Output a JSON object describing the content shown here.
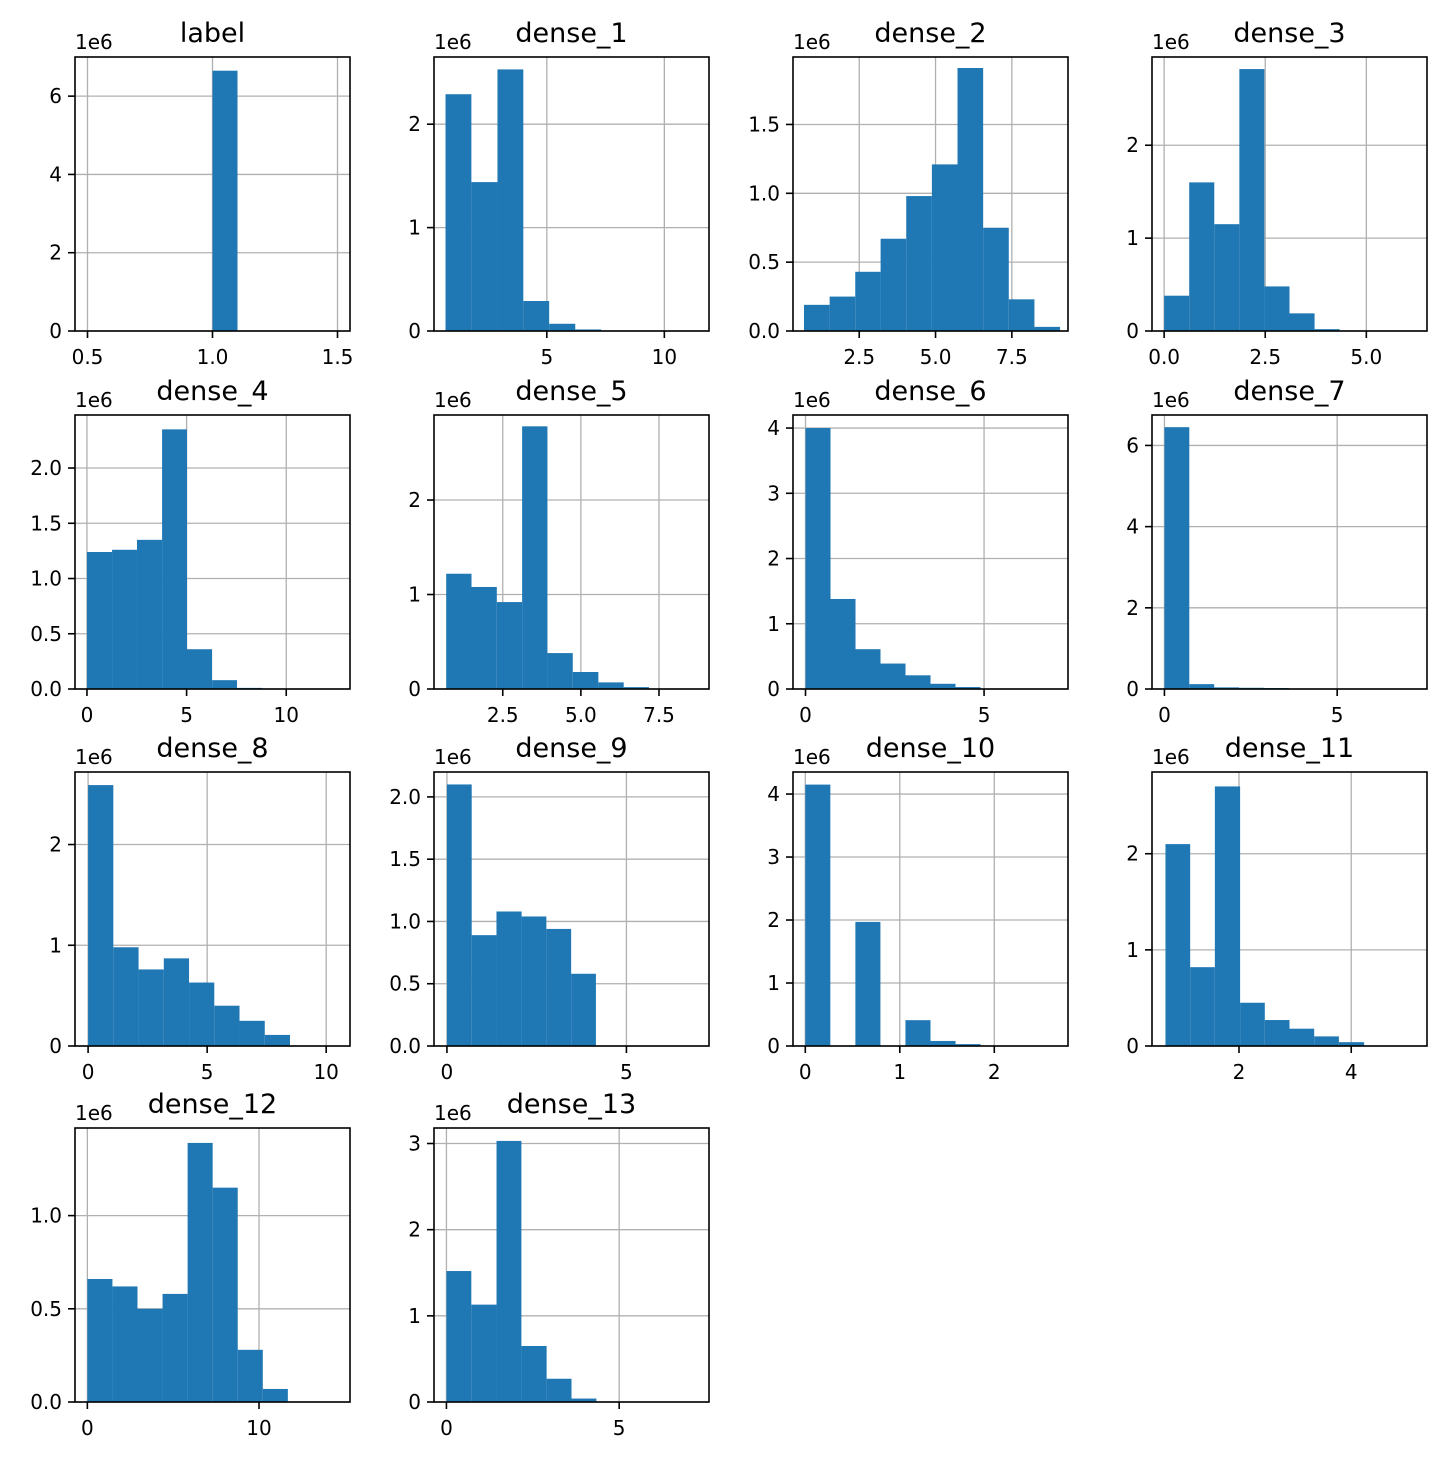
{
  "style": {
    "bar_color": "#1f77b4",
    "grid_color": "#b0b0b0",
    "axis_color": "#000000"
  },
  "chart_data": [
    {
      "type": "bar",
      "title": "label",
      "y_offset_label": "1e6",
      "grid": true,
      "xlim": [
        0.45,
        1.55
      ],
      "ylim": [
        0,
        7.0
      ],
      "xticks": [
        0.5,
        1.0,
        1.5
      ],
      "xtick_labels": [
        "0.5",
        "1.0",
        "1.5"
      ],
      "yticks": [
        0,
        2,
        4,
        6
      ],
      "ytick_labels": [
        "0",
        "2",
        "4",
        "6"
      ],
      "bin_edges": [
        1.0,
        1.1
      ],
      "values": [
        6.65
      ]
    },
    {
      "type": "bar",
      "title": "dense_1",
      "y_offset_label": "1e6",
      "grid": true,
      "xlim": [
        0.2,
        11.9
      ],
      "ylim": [
        0,
        2.65
      ],
      "xticks": [
        5,
        10
      ],
      "xtick_labels": [
        "5",
        "10"
      ],
      "yticks": [
        0,
        1,
        2
      ],
      "ytick_labels": [
        "0",
        "1",
        "2"
      ],
      "bin_edges": [
        0.69,
        1.79,
        2.9,
        4.0,
        5.1,
        6.21,
        7.31,
        8.41,
        9.52,
        10.62,
        11.73
      ],
      "values": [
        2.29,
        1.44,
        2.53,
        0.29,
        0.07,
        0.015,
        0.004,
        0.001,
        0.0005,
        0.0002
      ]
    },
    {
      "type": "bar",
      "title": "dense_2",
      "y_offset_label": "1e6",
      "grid": true,
      "xlim": [
        0.33,
        9.34
      ],
      "ylim": [
        0,
        1.99
      ],
      "xticks": [
        2.5,
        5.0,
        7.5
      ],
      "xtick_labels": [
        "2.5",
        "5.0",
        "7.5"
      ],
      "yticks": [
        0.0,
        0.5,
        1.0,
        1.5
      ],
      "ytick_labels": [
        "0.0",
        "0.5",
        "1.0",
        "1.5"
      ],
      "bin_edges": [
        0.69,
        1.53,
        2.37,
        3.2,
        4.04,
        4.88,
        5.72,
        6.56,
        7.4,
        8.24,
        9.08
      ],
      "values": [
        0.19,
        0.25,
        0.43,
        0.67,
        0.98,
        1.21,
        1.91,
        0.75,
        0.23,
        0.03
      ]
    },
    {
      "type": "bar",
      "title": "dense_3",
      "y_offset_label": "1e6",
      "grid": true,
      "xlim": [
        -0.3,
        6.5
      ],
      "ylim": [
        0,
        2.95
      ],
      "xticks": [
        0.0,
        2.5,
        5.0
      ],
      "xtick_labels": [
        "0.0",
        "2.5",
        "5.0"
      ],
      "yticks": [
        0,
        1,
        2
      ],
      "ytick_labels": [
        "0",
        "1",
        "2"
      ],
      "bin_edges": [
        0.0,
        0.62,
        1.24,
        1.86,
        2.48,
        3.1,
        3.72,
        4.34,
        4.96,
        5.58,
        6.2
      ],
      "values": [
        0.38,
        1.6,
        1.15,
        2.82,
        0.48,
        0.19,
        0.02,
        0.002,
        0.0005,
        0.0001
      ]
    },
    {
      "type": "bar",
      "title": "dense_4",
      "y_offset_label": "1e6",
      "grid": true,
      "xlim": [
        -0.6,
        13.2
      ],
      "ylim": [
        0,
        2.48
      ],
      "xticks": [
        0,
        5,
        10
      ],
      "xtick_labels": [
        "0",
        "5",
        "10"
      ],
      "yticks": [
        0.0,
        0.5,
        1.0,
        1.5,
        2.0
      ],
      "ytick_labels": [
        "0.0",
        "0.5",
        "1.0",
        "1.5",
        "2.0"
      ],
      "bin_edges": [
        0.0,
        1.26,
        2.51,
        3.77,
        5.02,
        6.28,
        7.53,
        8.79,
        10.04,
        11.3,
        12.55
      ],
      "values": [
        1.24,
        1.26,
        1.35,
        2.35,
        0.36,
        0.08,
        0.01,
        0.002,
        0.0005,
        0.0001
      ]
    },
    {
      "type": "bar",
      "title": "dense_5",
      "y_offset_label": "1e6",
      "grid": true,
      "xlim": [
        0.3,
        9.1
      ],
      "ylim": [
        0,
        2.9
      ],
      "xticks": [
        2.5,
        5.0,
        7.5
      ],
      "xtick_labels": [
        "2.5",
        "5.0",
        "7.5"
      ],
      "yticks": [
        0,
        1,
        2
      ],
      "ytick_labels": [
        "0",
        "1",
        "2"
      ],
      "bin_edges": [
        0.69,
        1.5,
        2.31,
        3.12,
        3.93,
        4.74,
        5.56,
        6.37,
        7.18,
        7.99,
        8.8
      ],
      "values": [
        1.22,
        1.08,
        0.92,
        2.78,
        0.38,
        0.18,
        0.07,
        0.02,
        0.004,
        0.001
      ]
    },
    {
      "type": "bar",
      "title": "dense_6",
      "y_offset_label": "1e6",
      "grid": true,
      "xlim": [
        -0.35,
        7.35
      ],
      "ylim": [
        0,
        4.2
      ],
      "xticks": [
        0,
        5
      ],
      "xtick_labels": [
        "0",
        "5"
      ],
      "yticks": [
        0,
        1,
        2,
        3,
        4
      ],
      "ytick_labels": [
        "0",
        "1",
        "2",
        "3",
        "4"
      ],
      "bin_edges": [
        0.0,
        0.7,
        1.4,
        2.1,
        2.8,
        3.5,
        4.2,
        4.9,
        5.6,
        6.3,
        7.0
      ],
      "values": [
        4.0,
        1.38,
        0.61,
        0.39,
        0.21,
        0.08,
        0.03,
        0.006,
        0.002,
        0.0005
      ]
    },
    {
      "type": "bar",
      "title": "dense_7",
      "y_offset_label": "1e6",
      "grid": true,
      "xlim": [
        -0.36,
        7.6
      ],
      "ylim": [
        0,
        6.75
      ],
      "xticks": [
        0,
        5
      ],
      "xtick_labels": [
        "0",
        "5"
      ],
      "yticks": [
        0,
        2,
        4,
        6
      ],
      "ytick_labels": [
        "0",
        "2",
        "4",
        "6"
      ],
      "bin_edges": [
        0.0,
        0.72,
        1.44,
        2.16,
        2.88,
        3.6,
        4.32,
        5.04,
        5.76,
        6.48,
        7.2
      ],
      "values": [
        6.45,
        0.12,
        0.04,
        0.03,
        0.025,
        0.01,
        0.004,
        0.001,
        0.0005,
        0.0001
      ]
    },
    {
      "type": "bar",
      "title": "dense_8",
      "y_offset_label": "1e6",
      "grid": true,
      "xlim": [
        -0.55,
        11.0
      ],
      "ylim": [
        0,
        2.72
      ],
      "xticks": [
        0,
        5,
        10
      ],
      "xtick_labels": [
        "0",
        "5",
        "10"
      ],
      "yticks": [
        0,
        1,
        2
      ],
      "ytick_labels": [
        "0",
        "1",
        "2"
      ],
      "bin_edges": [
        0.0,
        1.06,
        2.12,
        3.18,
        4.24,
        5.3,
        6.36,
        7.42,
        8.48,
        9.54,
        10.6
      ],
      "values": [
        2.59,
        0.98,
        0.76,
        0.87,
        0.63,
        0.4,
        0.25,
        0.11,
        0.003,
        0.0005
      ]
    },
    {
      "type": "bar",
      "title": "dense_9",
      "y_offset_label": "1e6",
      "grid": true,
      "xlim": [
        -0.36,
        7.3
      ],
      "ylim": [
        0,
        2.2
      ],
      "xticks": [
        0,
        5
      ],
      "xtick_labels": [
        "0",
        "5"
      ],
      "yticks": [
        0.0,
        0.5,
        1.0,
        1.5,
        2.0
      ],
      "ytick_labels": [
        "0.0",
        "0.5",
        "1.0",
        "1.5",
        "2.0"
      ],
      "bin_edges": [
        0.0,
        0.69,
        1.38,
        2.08,
        2.77,
        3.46,
        4.15,
        4.85,
        5.54,
        6.23,
        6.93
      ],
      "values": [
        2.1,
        0.89,
        1.08,
        1.04,
        0.94,
        0.58,
        0.004,
        0.001,
        0.0005,
        0.0001
      ]
    },
    {
      "type": "bar",
      "title": "dense_10",
      "y_offset_label": "1e6",
      "grid": true,
      "xlim": [
        -0.13,
        2.78
      ],
      "ylim": [
        0,
        4.35
      ],
      "xticks": [
        0,
        1,
        2
      ],
      "xtick_labels": [
        "0",
        "1",
        "2"
      ],
      "yticks": [
        0,
        1,
        2,
        3,
        4
      ],
      "ytick_labels": [
        "0",
        "1",
        "2",
        "3",
        "4"
      ],
      "bin_edges": [
        0.0,
        0.265,
        0.53,
        0.795,
        1.06,
        1.325,
        1.59,
        1.855,
        2.12,
        2.385,
        2.65
      ],
      "values": [
        4.15,
        0,
        1.97,
        0,
        0.41,
        0.08,
        0.03,
        0.005,
        0.001,
        0.0003
      ]
    },
    {
      "type": "bar",
      "title": "dense_11",
      "y_offset_label": "1e6",
      "grid": true,
      "xlim": [
        0.45,
        5.35
      ],
      "ylim": [
        0,
        2.85
      ],
      "xticks": [
        2,
        4
      ],
      "xtick_labels": [
        "2",
        "4"
      ],
      "yticks": [
        0,
        1,
        2
      ],
      "ytick_labels": [
        "0",
        "1",
        "2"
      ],
      "bin_edges": [
        0.69,
        1.13,
        1.57,
        2.02,
        2.46,
        2.9,
        3.34,
        3.78,
        4.23,
        4.67,
        5.11
      ],
      "values": [
        2.1,
        0.82,
        2.7,
        0.45,
        0.27,
        0.18,
        0.1,
        0.04,
        0.005,
        0.001
      ]
    },
    {
      "type": "bar",
      "title": "dense_12",
      "y_offset_label": "1e6",
      "grid": true,
      "xlim": [
        -0.72,
        15.3
      ],
      "ylim": [
        0,
        1.47
      ],
      "xticks": [
        0,
        10
      ],
      "xtick_labels": [
        "0",
        "10"
      ],
      "yticks": [
        0.0,
        0.5,
        1.0
      ],
      "ytick_labels": [
        "0.0",
        "0.5",
        "1.0"
      ],
      "bin_edges": [
        0.0,
        1.46,
        2.92,
        4.38,
        5.84,
        7.3,
        8.76,
        10.22,
        11.68,
        13.14,
        14.6
      ],
      "values": [
        0.66,
        0.62,
        0.5,
        0.58,
        1.39,
        1.15,
        0.28,
        0.07,
        0.002,
        0.0005
      ]
    },
    {
      "type": "bar",
      "title": "dense_13",
      "y_offset_label": "1e6",
      "grid": true,
      "xlim": [
        -0.36,
        7.6
      ],
      "ylim": [
        0,
        3.18
      ],
      "xticks": [
        0,
        5
      ],
      "xtick_labels": [
        "0",
        "5"
      ],
      "yticks": [
        0,
        1,
        2,
        3
      ],
      "ytick_labels": [
        "0",
        "1",
        "2",
        "3"
      ],
      "bin_edges": [
        0.0,
        0.72,
        1.45,
        2.17,
        2.9,
        3.62,
        4.34,
        5.07,
        5.79,
        6.52,
        7.24
      ],
      "values": [
        1.52,
        1.13,
        3.03,
        0.65,
        0.27,
        0.04,
        0.004,
        0.001,
        0.0005,
        0.0001
      ]
    }
  ]
}
